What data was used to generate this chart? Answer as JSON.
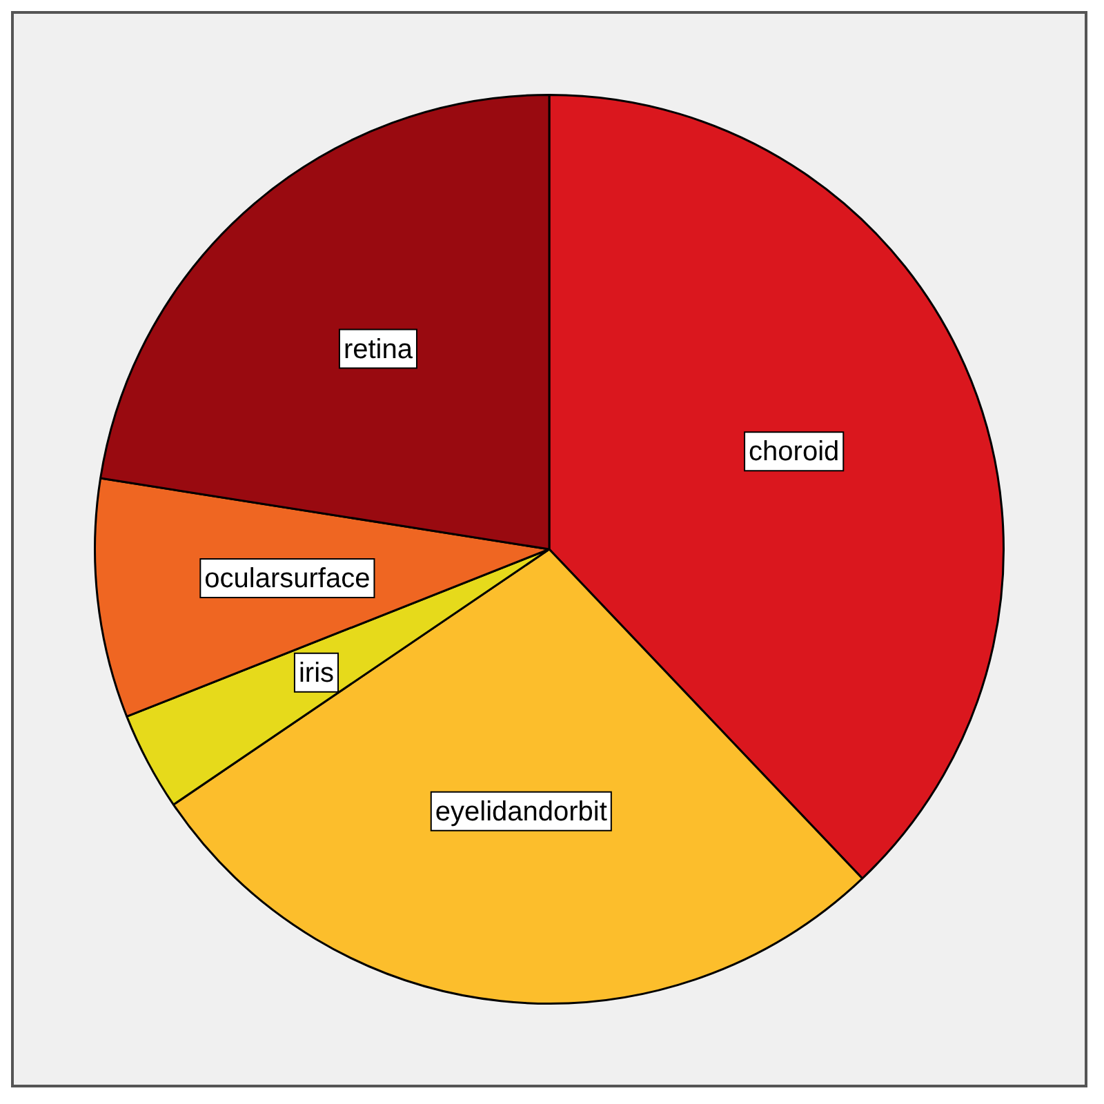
{
  "chart_data": {
    "type": "pie",
    "categories": [
      "choroid",
      "eyelidandorbit",
      "iris",
      "ocularsurface",
      "retina"
    ],
    "values": [
      37.9,
      27.6,
      3.5,
      8.5,
      22.5
    ],
    "colors": [
      "#da171e",
      "#fcbe2c",
      "#e6da1b",
      "#ef6622",
      "#990a10"
    ],
    "data_labels": false,
    "legend": false
  }
}
